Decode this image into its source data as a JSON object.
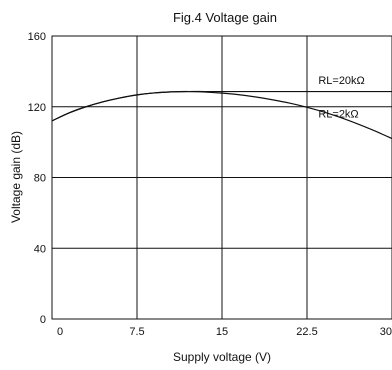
{
  "chart_data": {
    "type": "line",
    "title": "Fig.4 Voltage gain",
    "xlabel": "Supply voltage  (V)",
    "ylabel": "Voltage gain  (dB)",
    "xlim": [
      0,
      30
    ],
    "ylim": [
      0,
      160
    ],
    "x_ticks": [
      "0",
      "7.5",
      "15",
      "22.5",
      "30"
    ],
    "y_ticks": [
      "0",
      "40",
      "80",
      "120",
      "160"
    ],
    "x_tick_values": [
      0,
      7.5,
      15,
      22.5,
      30
    ],
    "y_tick_values": [
      0,
      40,
      80,
      120,
      160
    ],
    "grid": true,
    "annotations": [
      {
        "text": "RL=20kΩ",
        "x": 23.5,
        "y": 133
      },
      {
        "text": "RL=2kΩ",
        "x": 23.5,
        "y": 114
      }
    ],
    "series": [
      {
        "name": "RL=20kΩ",
        "x": [
          0,
          1.5,
          3,
          4.5,
          6,
          7.5,
          9,
          10.5,
          12,
          13.5,
          15,
          16.5,
          18,
          19.5,
          21,
          22.5,
          24,
          25.5,
          27,
          28.5,
          30
        ],
        "y": [
          112,
          116.5,
          120,
          122.8,
          125,
          126.7,
          127.8,
          128.4,
          128.6,
          128.6,
          128.6,
          128.6,
          128.6,
          128.6,
          128.6,
          128.6,
          128.6,
          128.6,
          128.6,
          128.6,
          128.6
        ]
      },
      {
        "name": "RL=2kΩ",
        "x": [
          0,
          1.5,
          3,
          4.5,
          6,
          7.5,
          9,
          10.5,
          12,
          13.5,
          15,
          16.5,
          18,
          19.5,
          21,
          22.5,
          24,
          25.5,
          27,
          28.5,
          30
        ],
        "y": [
          112,
          116.5,
          120,
          122.8,
          125,
          126.7,
          127.8,
          128.4,
          128.6,
          128.3,
          127.7,
          126.8,
          125.5,
          123.9,
          122,
          119.7,
          117,
          113.8,
          110.2,
          106.3,
          102
        ]
      }
    ]
  }
}
